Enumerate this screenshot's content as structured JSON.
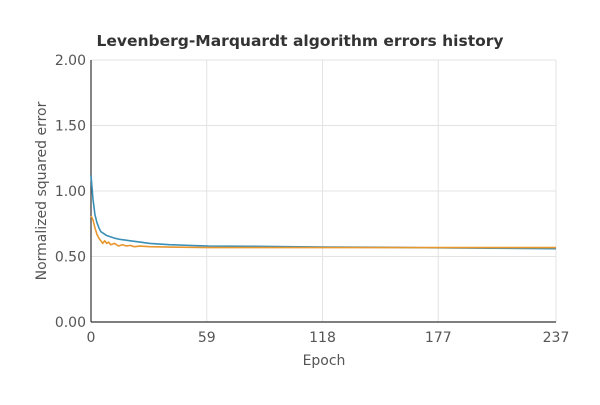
{
  "chart_data": {
    "type": "line",
    "title": "Levenberg-Marquardt algorithm errors history",
    "xlabel": "Epoch",
    "ylabel": "Normalized squared error",
    "xlim": [
      0,
      237
    ],
    "ylim": [
      0,
      2
    ],
    "x_ticks": [
      "0",
      "59",
      "118",
      "177",
      "237"
    ],
    "y_ticks": [
      "0.00",
      "0.50",
      "1.00",
      "1.50",
      "2.00"
    ],
    "grid": true,
    "legend": "none",
    "series": [
      {
        "color": "#3a8fb7",
        "points": [
          [
            0,
            1.12
          ],
          [
            1,
            0.94
          ],
          [
            2,
            0.82
          ],
          [
            3,
            0.76
          ],
          [
            4,
            0.72
          ],
          [
            5,
            0.69
          ],
          [
            6,
            0.68
          ],
          [
            8,
            0.66
          ],
          [
            10,
            0.65
          ],
          [
            12,
            0.64
          ],
          [
            15,
            0.63
          ],
          [
            20,
            0.62
          ],
          [
            25,
            0.61
          ],
          [
            30,
            0.6
          ],
          [
            40,
            0.59
          ],
          [
            50,
            0.585
          ],
          [
            60,
            0.58
          ],
          [
            80,
            0.578
          ],
          [
            100,
            0.575
          ],
          [
            120,
            0.572
          ],
          [
            150,
            0.57
          ],
          [
            185,
            0.565
          ],
          [
            237,
            0.56
          ]
        ]
      },
      {
        "color": "#e8962e",
        "points": [
          [
            0,
            0.81
          ],
          [
            1,
            0.78
          ],
          [
            2,
            0.72
          ],
          [
            3,
            0.67
          ],
          [
            4,
            0.64
          ],
          [
            5,
            0.62
          ],
          [
            6,
            0.6
          ],
          [
            7,
            0.62
          ],
          [
            8,
            0.6
          ],
          [
            9,
            0.61
          ],
          [
            10,
            0.59
          ],
          [
            12,
            0.6
          ],
          [
            14,
            0.58
          ],
          [
            16,
            0.59
          ],
          [
            18,
            0.58
          ],
          [
            20,
            0.585
          ],
          [
            22,
            0.575
          ],
          [
            25,
            0.58
          ],
          [
            30,
            0.575
          ],
          [
            40,
            0.572
          ],
          [
            50,
            0.57
          ],
          [
            60,
            0.568
          ],
          [
            100,
            0.568
          ],
          [
            150,
            0.568
          ],
          [
            200,
            0.568
          ],
          [
            237,
            0.568
          ]
        ]
      }
    ]
  }
}
